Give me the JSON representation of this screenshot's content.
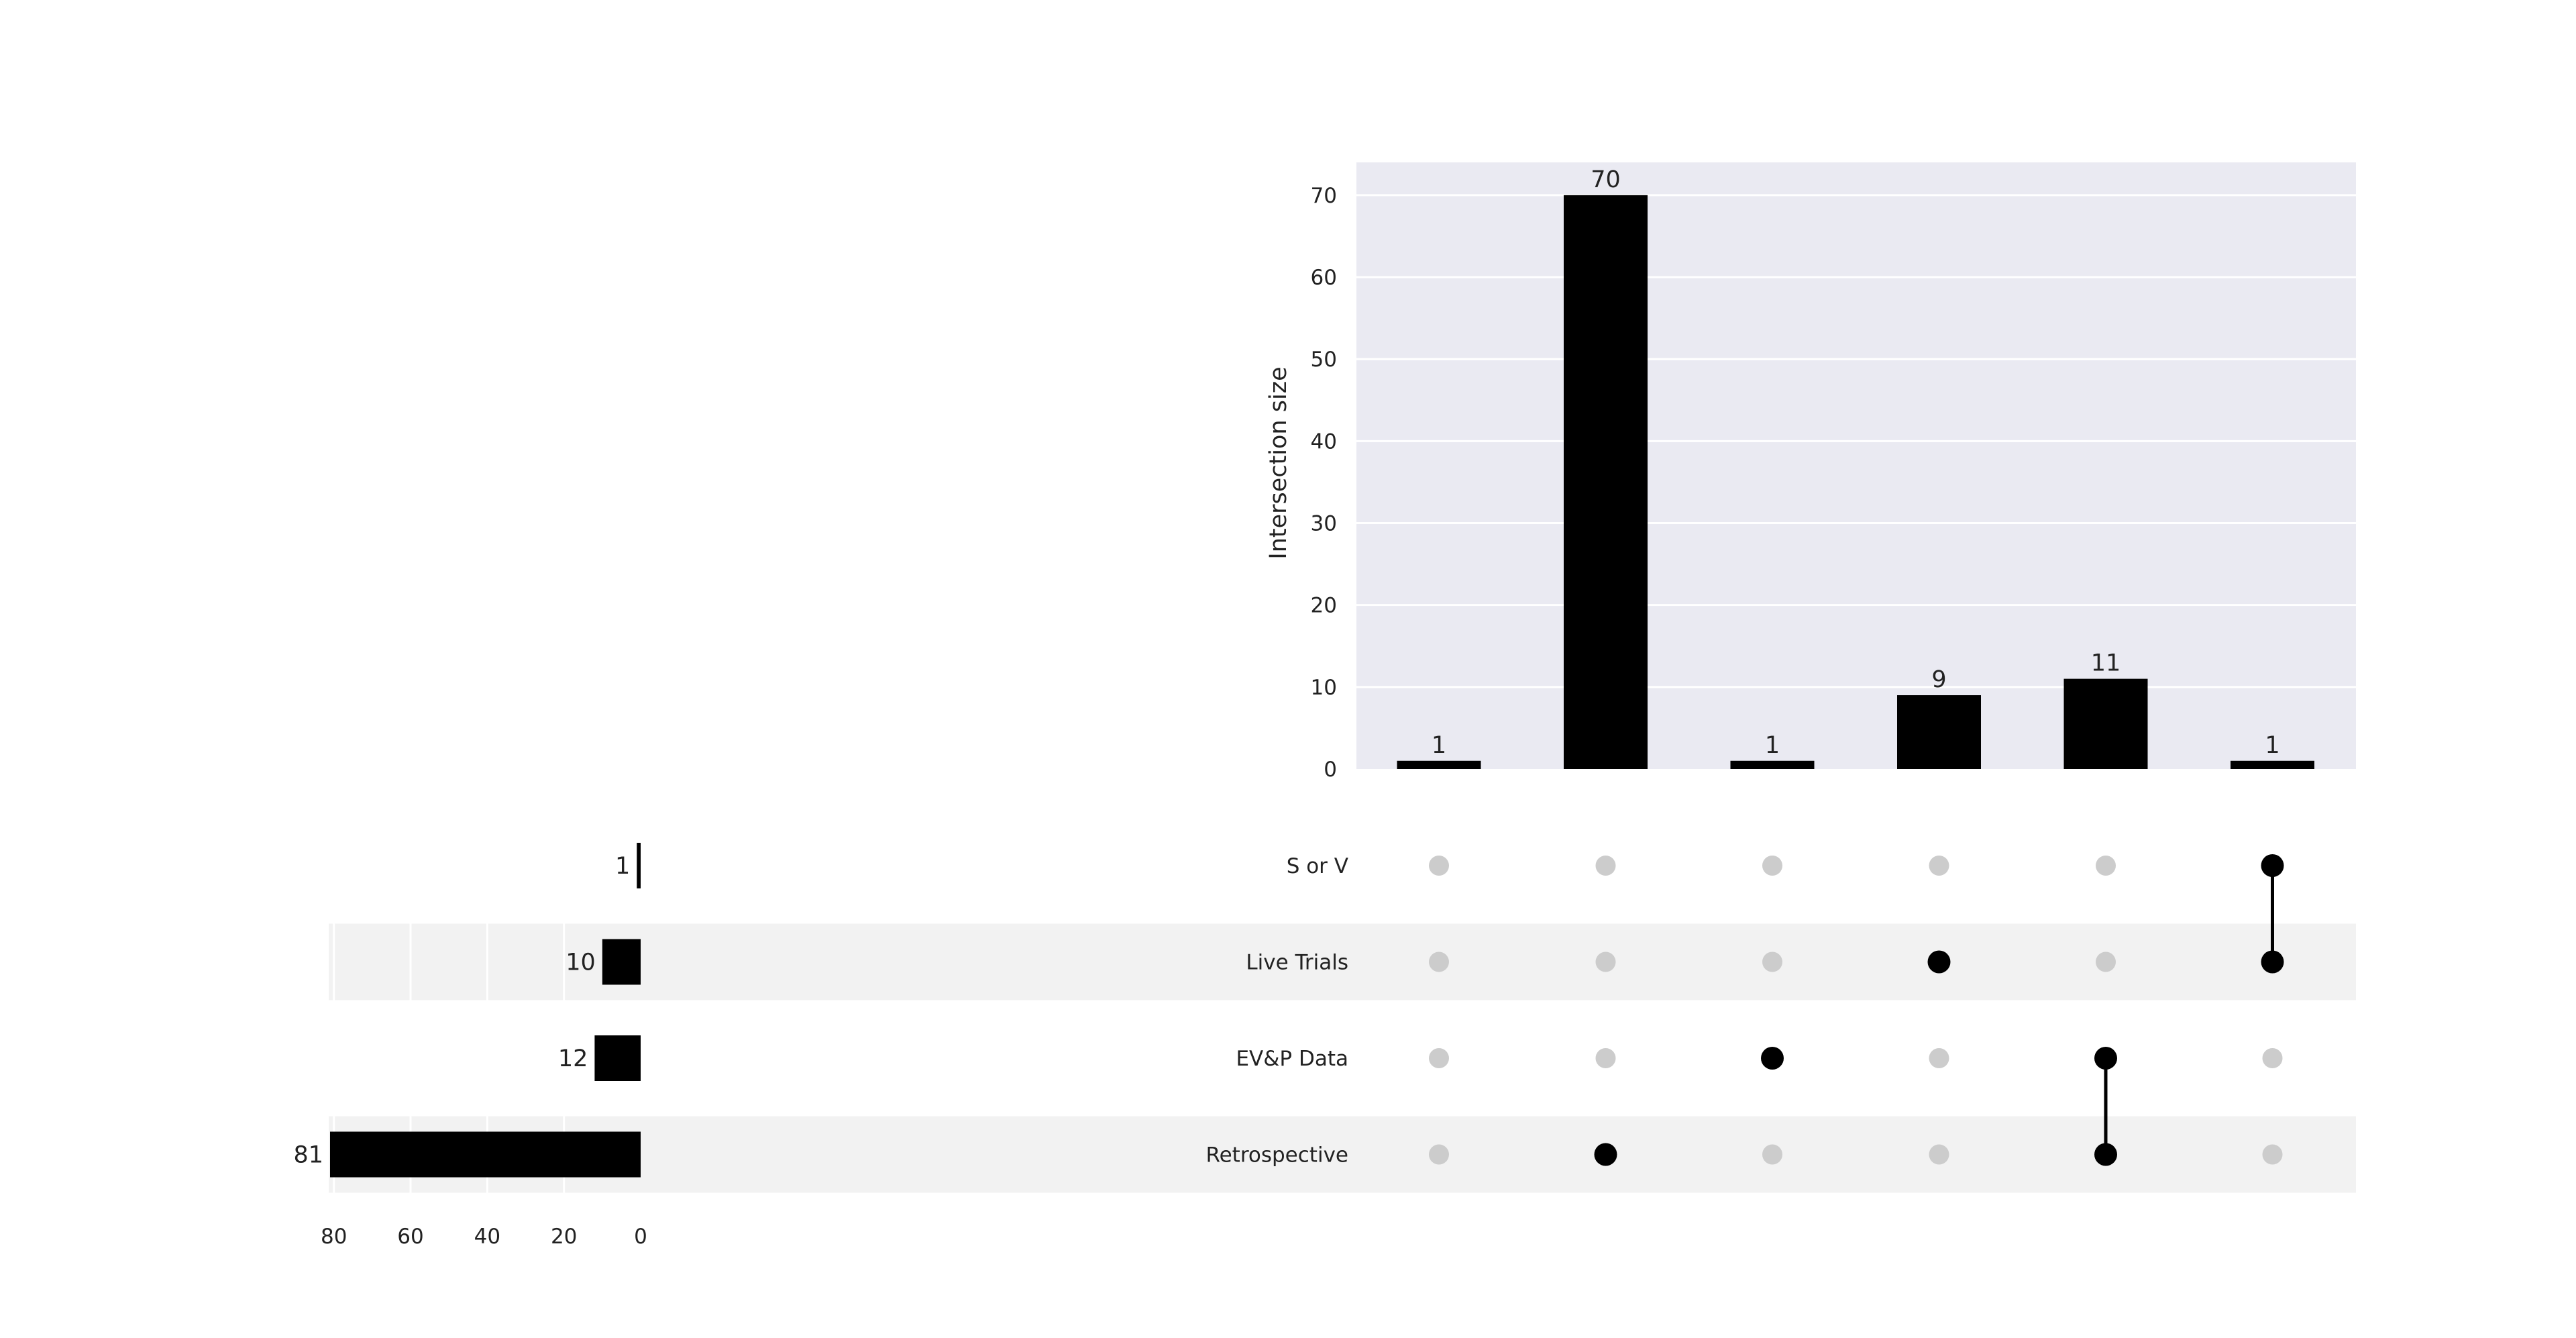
{
  "chart_data": {
    "type": "upset",
    "sets": [
      "S or V",
      "Live Trials",
      "EV&P Data",
      "Retrospective"
    ],
    "set_sizes": [
      1,
      10,
      12,
      81
    ],
    "set_size_axis": {
      "ticks": [
        80,
        60,
        40,
        20,
        0
      ],
      "xlim": [
        0,
        81
      ]
    },
    "intersection_axis": {
      "ylabel": "Intersection size",
      "ticks": [
        0,
        10,
        20,
        30,
        40,
        50,
        60,
        70
      ],
      "ylim": [
        0,
        74
      ]
    },
    "intersections": [
      {
        "members": [],
        "size": 1
      },
      {
        "members": [
          "Retrospective"
        ],
        "size": 70
      },
      {
        "members": [
          "EV&P Data"
        ],
        "size": 1
      },
      {
        "members": [
          "Live Trials"
        ],
        "size": 9
      },
      {
        "members": [
          "EV&P Data",
          "Retrospective"
        ],
        "size": 11
      },
      {
        "members": [
          "S or V",
          "Live Trials"
        ],
        "size": 1
      }
    ],
    "grid": true,
    "colors": {
      "bar": "#000000",
      "dot_active": "#000000",
      "dot_inactive": "#cccccc",
      "plot_bg": "#eaeaf2",
      "row_shade": "#f2f2f2",
      "grid": "#ffffff",
      "text": "#222222"
    }
  }
}
